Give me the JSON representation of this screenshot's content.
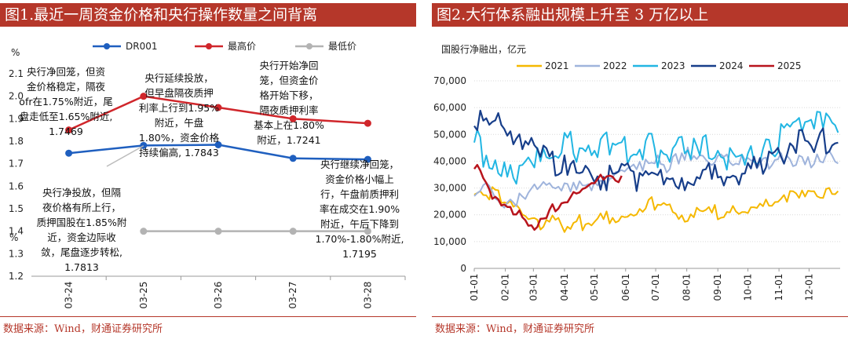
{
  "panel1": {
    "title": "图1.最近一周资金价格和央行操作数量之间背离",
    "source": "数据来源：Wind，财通证券研究所",
    "chart_data": {
      "type": "line",
      "categories": [
        "03-24",
        "03-25",
        "03-26",
        "03-27",
        "03-28"
      ],
      "yunit_top": "%",
      "yunit_bottom": "%",
      "yticks": [
        "2.1",
        "2.0",
        "1.9",
        "1.8",
        "1.7",
        "1.6",
        "1.5",
        "1.4",
        "1.3",
        "1.2"
      ],
      "ylim": [
        1.2,
        2.1
      ],
      "series": [
        {
          "name": "DR001",
          "color": "#1f5fbf",
          "values": [
            1.7469,
            1.7813,
            1.7843,
            1.7241,
            1.7195
          ]
        },
        {
          "name": "最高价",
          "color": "#d0262b",
          "values": [
            1.85,
            2.0,
            1.95,
            1.9,
            1.88
          ]
        },
        {
          "name": "最低价",
          "color": "#b3b3b3",
          "values": [
            null,
            1.4,
            1.4,
            1.4,
            1.4
          ]
        }
      ],
      "annotations": [
        {
          "lines": [
            "央行净回笼，但资",
            "金价格稳定，隔夜",
            "ofr在1.75%附近，尾",
            "盘走低至1.65%附近,",
            "1.7469"
          ]
        },
        {
          "lines": [
            "央行延续投放，",
            "但早盘隔夜质押",
            "利率上行到1.95%",
            "附近，午盘",
            "1.80%，资金价格",
            "持续偏高, 1.7843"
          ]
        },
        {
          "lines": [
            "央行开始净回",
            "笼，但资金价",
            "格开始下移，",
            "隔夜质押利率",
            "基本上在1.80%",
            "附近，1.7241"
          ]
        },
        {
          "lines": [
            "央行继续净回笼，",
            "资金价格小幅上",
            "行，午盘前质押利",
            "率在成交在1.90%",
            "附近，午后下降到",
            "1.70%-1.80%附近,",
            "1.7195"
          ]
        },
        {
          "lines": [
            "央行净投放，但隔",
            "夜价格有所上行，",
            "质押国股在1.85%附",
            "近，资金边际收",
            "敛，尾盘逐步转松,",
            "1.7813"
          ]
        }
      ]
    }
  },
  "panel2": {
    "title": "图2.大行体系融出规模上升至 3 万亿以上",
    "source": "数据来源：Wind，财通证券研究所",
    "chart_data": {
      "type": "line",
      "ylabel": "国股行净融出，亿元",
      "ylim": [
        0,
        70000
      ],
      "yticks": [
        "70,000",
        "60,000",
        "50,000",
        "40,000",
        "30,000",
        "20,000",
        "10,000",
        "0"
      ],
      "categories": [
        "01-01",
        "02-01",
        "03-01",
        "04-01",
        "05-01",
        "06-01",
        "07-01",
        "08-01",
        "09-01",
        "10-01",
        "11-01",
        "12-01"
      ],
      "series": [
        {
          "name": "2021",
          "color": "#f5b800",
          "width": 2,
          "values": [
            30000,
            25000,
            18000,
            16000,
            18000,
            19000,
            24000,
            20000,
            21000,
            23000,
            25000,
            29000
          ]
        },
        {
          "name": "2022",
          "color": "#9fb4dc",
          "width": 2,
          "values": [
            30000,
            26000,
            29000,
            30000,
            33000,
            36000,
            38000,
            41000,
            40000,
            39000,
            40000,
            41000
          ]
        },
        {
          "name": "2023",
          "color": "#22b6e3",
          "width": 2,
          "values": [
            46000,
            37000,
            40000,
            45000,
            43000,
            46000,
            45000,
            44000,
            45000,
            41000,
            46000,
            55000
          ]
        },
        {
          "name": "2024",
          "color": "#173e8a",
          "width": 2.2,
          "values": [
            54000,
            52000,
            45000,
            40000,
            31000,
            36000,
            32000,
            34000,
            33000,
            36000,
            40000,
            47000
          ]
        },
        {
          "name": "2025",
          "color": "#b8141c",
          "width": 2.5,
          "values": [
            38000,
            22000,
            15000,
            25000,
            33000,
            null,
            null,
            null,
            null,
            null,
            null,
            null
          ]
        }
      ]
    }
  }
}
